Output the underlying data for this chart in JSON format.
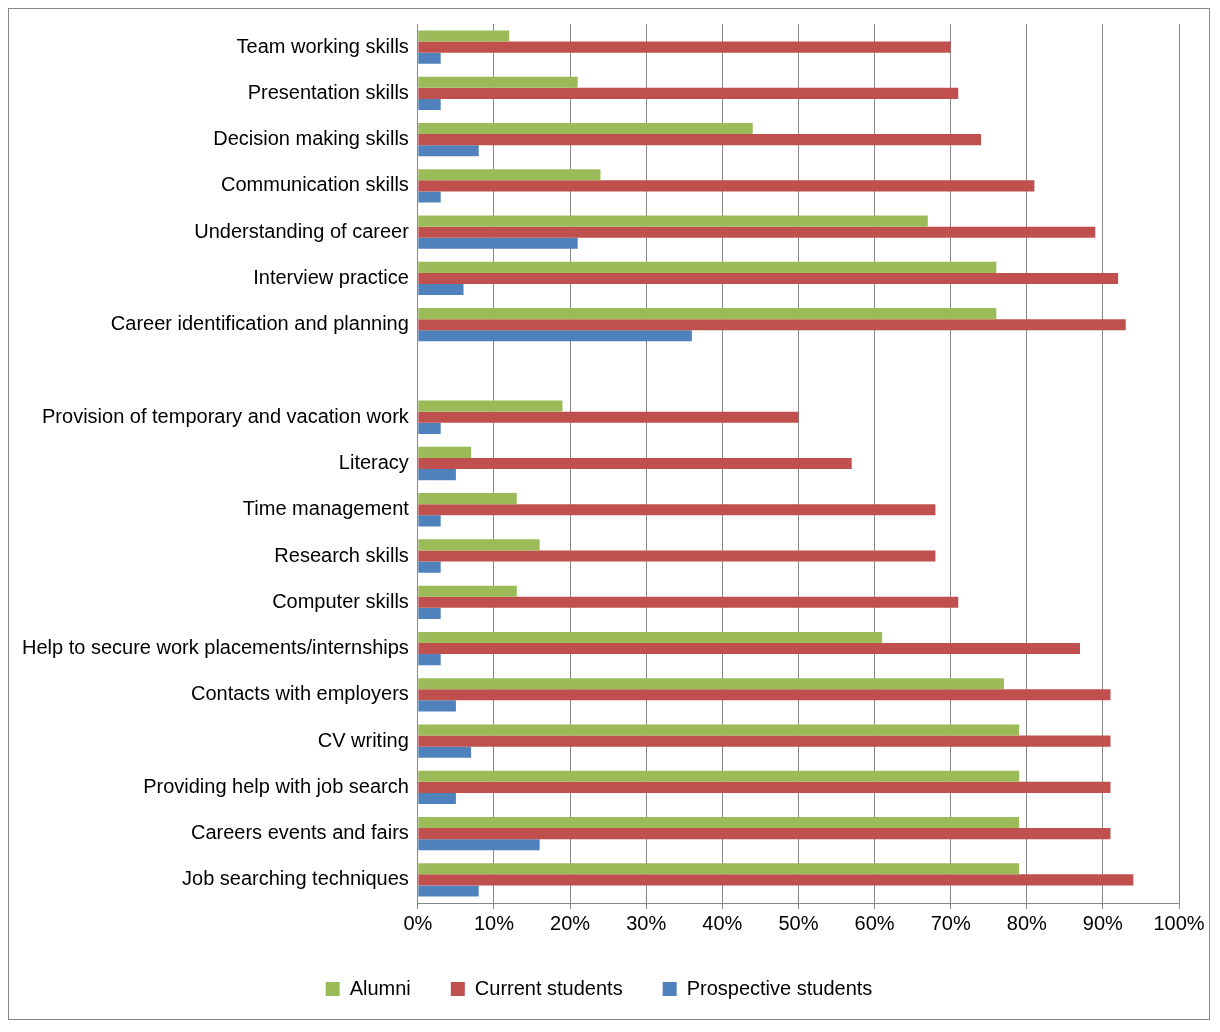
{
  "chart_data": {
    "type": "bar",
    "orientation": "horizontal",
    "categories": [
      "Team working skills",
      "Presentation skills",
      "Decision making skills",
      "Communication skills",
      "Understanding of career",
      "Interview practice",
      "Career identification and planning",
      null,
      "Provision of temporary and vacation work",
      "Literacy",
      "Time management",
      "Research skills",
      "Computer skills",
      "Help to secure work placements/internships",
      "Contacts with employers",
      "CV writing",
      "Providing help with job search",
      "Careers events and fairs",
      "Job searching techniques"
    ],
    "series": [
      {
        "name": "Alumni",
        "color": "#9bbb59",
        "values": [
          12,
          21,
          44,
          24,
          67,
          76,
          76,
          null,
          19,
          7,
          13,
          16,
          13,
          61,
          77,
          79,
          79,
          79,
          79
        ]
      },
      {
        "name": "Current students",
        "color": "#c0504d",
        "values": [
          70,
          71,
          74,
          81,
          89,
          92,
          93,
          null,
          50,
          57,
          68,
          68,
          71,
          87,
          91,
          91,
          91,
          91,
          94
        ]
      },
      {
        "name": "Prospective students",
        "color": "#4f81bd",
        "values": [
          3,
          3,
          8,
          3,
          21,
          6,
          36,
          null,
          3,
          5,
          3,
          3,
          3,
          3,
          5,
          7,
          5,
          16,
          8
        ]
      }
    ],
    "xlim": [
      0,
      100
    ],
    "xticks": [
      {
        "value": 0,
        "label": "0%"
      },
      {
        "value": 10,
        "label": "10%"
      },
      {
        "value": 20,
        "label": "20%"
      },
      {
        "value": 30,
        "label": "30%"
      },
      {
        "value": 40,
        "label": "40%"
      },
      {
        "value": 50,
        "label": "50%"
      },
      {
        "value": 60,
        "label": "60%"
      },
      {
        "value": 70,
        "label": "70%"
      },
      {
        "value": 80,
        "label": "80%"
      },
      {
        "value": 90,
        "label": "90%"
      },
      {
        "value": 100,
        "label": "100%"
      }
    ],
    "grid": "x",
    "legend": "bottom"
  }
}
